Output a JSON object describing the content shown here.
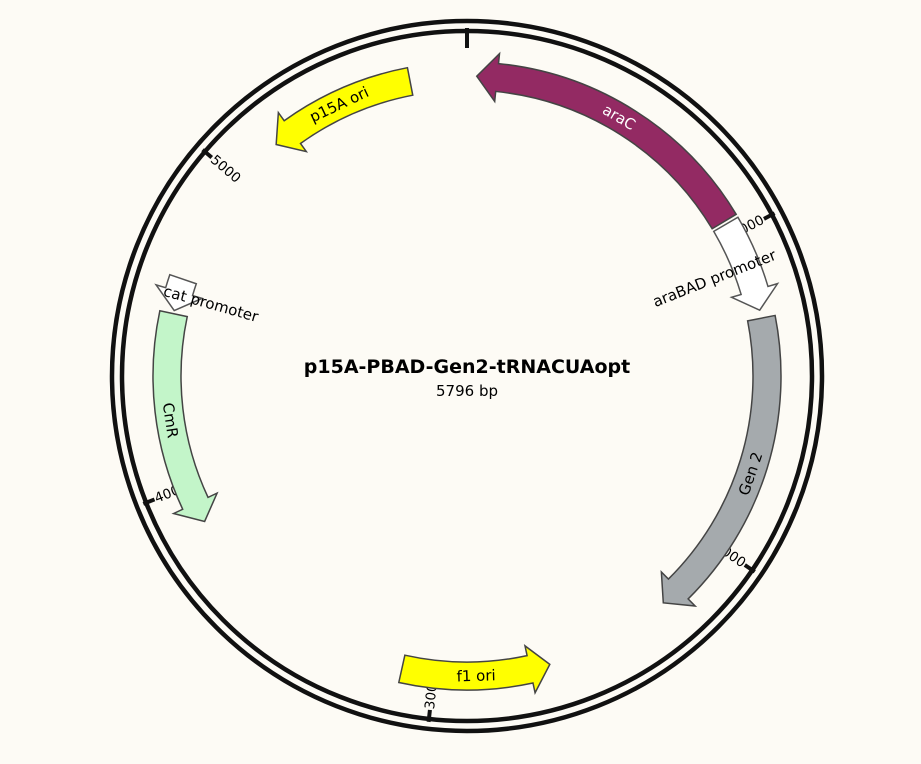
{
  "plasmid": {
    "name": "p15A-PBAD-Gen2-tRNACUAopt",
    "size_label": "5796 bp",
    "length_bp": 5796
  },
  "ticks": [
    {
      "label": "1000",
      "bp": 1000
    },
    {
      "label": "2000",
      "bp": 2000
    },
    {
      "label": "3000",
      "bp": 3000
    },
    {
      "label": "4000",
      "bp": 4000
    },
    {
      "label": "5000",
      "bp": 5000
    }
  ],
  "features": [
    {
      "id": "araC",
      "label": "araC",
      "type": "cds",
      "start_bp": 30,
      "end_bp": 950,
      "strand": -1,
      "fill": "#932a63",
      "label_color": "#ffffff"
    },
    {
      "id": "araBAD-promoter",
      "label": "araBAD promoter",
      "type": "promoter",
      "start_bp": 960,
      "end_bp": 1245,
      "strand": 1,
      "fill": "#ffffff",
      "label_color": "#000000"
    },
    {
      "id": "gen2",
      "label": "Gen 2",
      "type": "cds",
      "start_bp": 1270,
      "end_bp": 2240,
      "strand": 1,
      "fill": "#a5aaad",
      "label_color": "#000000"
    },
    {
      "id": "f1-ori",
      "label": "f1 ori",
      "type": "origin",
      "start_bp": 2640,
      "end_bp": 3100,
      "strand": -1,
      "fill": "#ffff00",
      "label_color": "#000000"
    },
    {
      "id": "cmr",
      "label": "CmR",
      "type": "cds",
      "start_bp": 3880,
      "end_bp": 4540,
      "strand": -1,
      "fill": "#c3f5c9",
      "label_color": "#000000"
    },
    {
      "id": "cat-promoter",
      "label": "cat promoter",
      "type": "promoter",
      "start_bp": 4550,
      "end_bp": 4650,
      "strand": -1,
      "fill": "#ffffff",
      "label_color": "#000000"
    },
    {
      "id": "p15a-ori",
      "label": "p15A ori",
      "type": "origin",
      "start_bp": 5160,
      "end_bp": 5620,
      "strand": -1,
      "fill": "#ffff00",
      "label_color": "#000000"
    }
  ]
}
